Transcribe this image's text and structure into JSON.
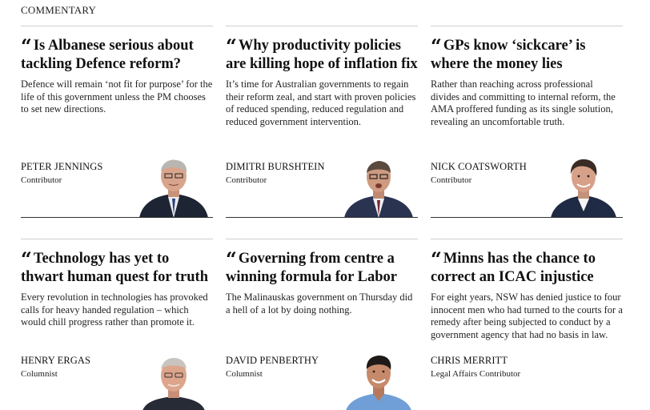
{
  "section": {
    "label": "COMMENTARY"
  },
  "articles": [
    {
      "headline": "Is Albanese serious about tackling Defence reform?",
      "standfirst": "Defence will remain ‘not fit for purpose’ for the life of this government unless the PM chooses to set new directions.",
      "author": "PETER JENNINGS",
      "role": "Contributor"
    },
    {
      "headline": "Why productivity policies are killing hope of inflation fix",
      "standfirst": "It’s time for Australian governments to regain their reform zeal, and start with proven policies of reduced spending, reduced regulation and reduced government intervention.",
      "author": "DIMITRI BURSHTEIN",
      "role": "Contributor"
    },
    {
      "headline": "GPs know ‘sickcare’ is where the money lies",
      "standfirst": "Rather than reaching across professional divides and committing to internal reform, the AMA proffered funding as its single solution, revealing an uncomfortable truth.",
      "author": "NICK COATSWORTH",
      "role": "Contributor"
    },
    {
      "headline": "Technology has yet to thwart human quest for truth",
      "standfirst": "Every revolution in technologies has provoked calls for heavy handed regulation – which would chill progress rather than promote it.",
      "author": "HENRY ERGAS",
      "role": "Columnist"
    },
    {
      "headline": "Governing from centre a winning formula for Labor",
      "standfirst": "The Malinauskas government on Thursday did a hell of a lot by doing nothing.",
      "author": "DAVID PENBERTHY",
      "role": "Columnist"
    },
    {
      "headline": "Minns has the chance to correct an ICAC injustice",
      "standfirst": "For eight years, NSW has denied justice to four innocent men who had turned to the courts for a remedy after being subjected to conduct by a government agency that had no basis in law.",
      "author": "CHRIS MERRITT",
      "role": "Legal Affairs Contributor"
    }
  ],
  "colors": {
    "text": "#111111",
    "rule": "#cfcfcf",
    "underline": "#333333"
  },
  "icons": {
    "quote": "quote-mark-icon"
  }
}
